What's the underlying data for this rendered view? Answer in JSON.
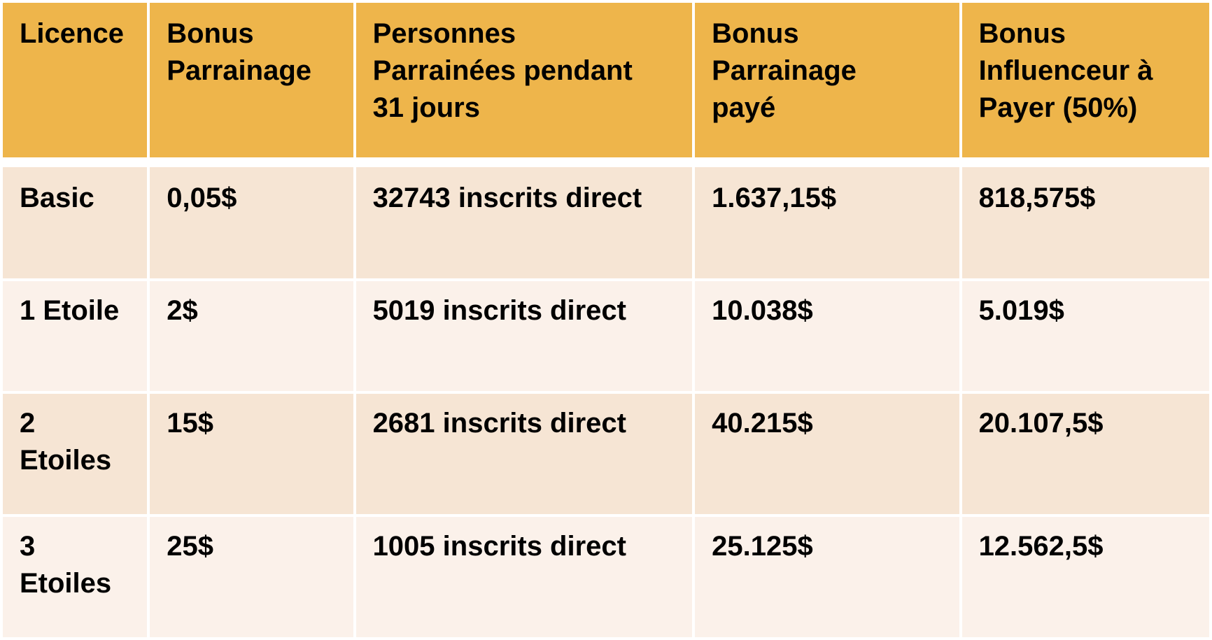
{
  "table": {
    "headers": [
      "Licence",
      "Bonus\nParrainage",
      "Personnes\nParrainées pendant\n31 jours",
      "Bonus\nParrainage\npayé",
      "Bonus\nInfluenceur à\nPayer (50%)"
    ],
    "rows": [
      [
        "Basic",
        "0,05$",
        "32743 inscrits direct",
        "1.637,15$",
        "818,575$"
      ],
      [
        "1 Etoile",
        "2$",
        "5019 inscrits direct",
        "10.038$",
        "5.019$"
      ],
      [
        "2\nEtoiles",
        "15$",
        "2681 inscrits direct",
        "40.215$",
        "20.107,5$"
      ],
      [
        "3\nEtoiles",
        "25$",
        "1005 inscrits direct",
        "25.125$",
        "12.562,5$"
      ]
    ]
  },
  "colors": {
    "header_bg": "#EEB54B",
    "row_dark": "#F6E5D4",
    "row_light": "#FBF1EA",
    "text": "#000000"
  }
}
